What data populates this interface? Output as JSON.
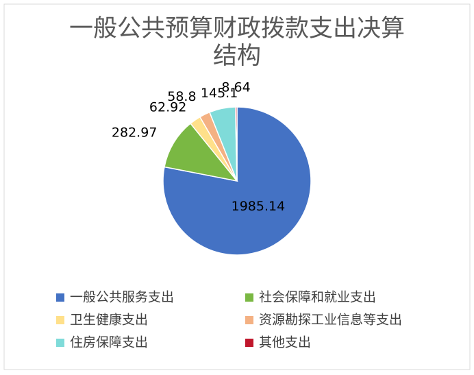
{
  "chart_data": {
    "type": "pie",
    "title": "一般公共预算财政拨款支出决算结构",
    "categories": [
      "一般公共服务支出",
      "社会保障和就业支出",
      "卫生健康支出",
      "资源勘探工业信息等支出",
      "住房保障支出",
      "其他支出"
    ],
    "values": [
      1985.14,
      282.97,
      62.92,
      58.8,
      145.1,
      8.64
    ],
    "colors": [
      "#4472c4",
      "#7ab843",
      "#ffe08a",
      "#f4b183",
      "#7fdbd9",
      "#c0172c"
    ],
    "legend": "bottom"
  }
}
